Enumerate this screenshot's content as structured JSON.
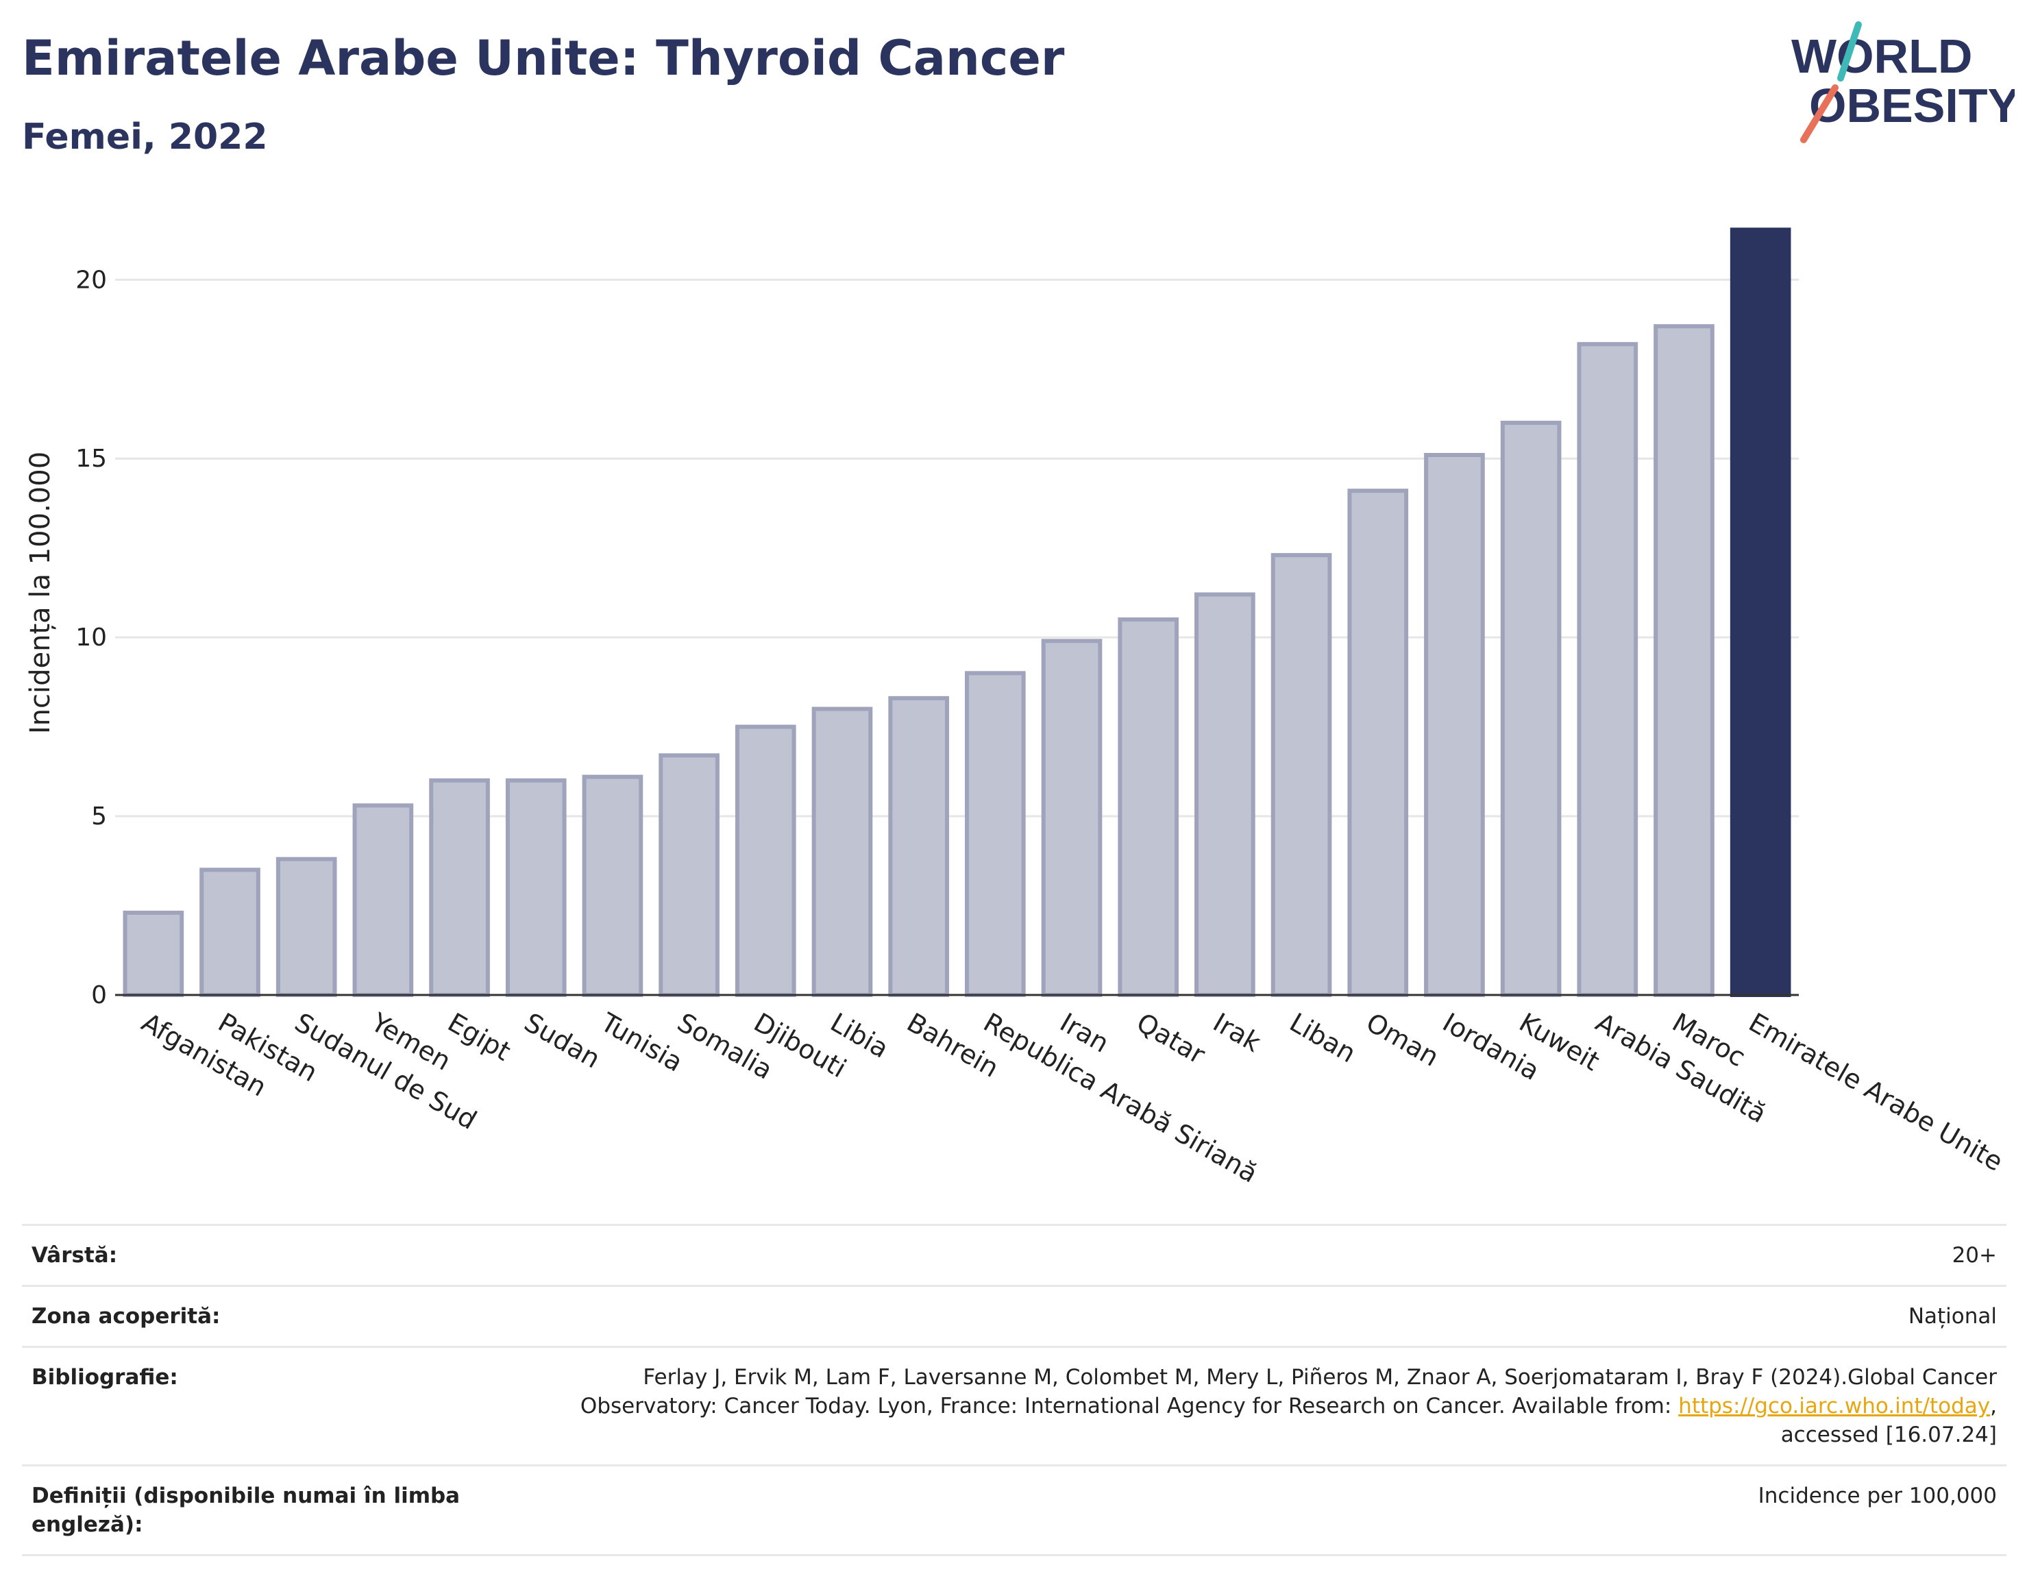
{
  "header": {
    "title": "Emiratele Arabe Unite: Thyroid Cancer",
    "subtitle": "Femei, 2022",
    "logo_line1": "WORLD",
    "logo_line2": "OBESITY"
  },
  "colors": {
    "bar_default": "#c0c3d1",
    "bar_default_border": "#9fa3bc",
    "bar_highlight": "#2b345e",
    "title": "#2b345e",
    "link": "#e8a60e"
  },
  "chart_data": {
    "type": "bar",
    "title": "Emiratele Arabe Unite: Thyroid Cancer",
    "subtitle": "Femei, 2022",
    "xlabel": "",
    "ylabel": "Incidența la 100.000",
    "ylim": [
      0,
      21.5
    ],
    "yticks": [
      0,
      5,
      10,
      15,
      20
    ],
    "grid": true,
    "highlight": "Emiratele Arabe Unite",
    "categories": [
      "Afganistan",
      "Pakistan",
      "Sudanul de Sud",
      "Yemen",
      "Egipt",
      "Sudan",
      "Tunisia",
      "Somalia",
      "Djibouti",
      "Libia",
      "Bahrein",
      "Republica Arabă Siriană",
      "Iran",
      "Qatar",
      "Irak",
      "Liban",
      "Oman",
      "Iordania",
      "Kuweit",
      "Arabia Saudită",
      "Maroc",
      "Emiratele Arabe Unite"
    ],
    "values": [
      2.3,
      3.5,
      3.8,
      5.3,
      6.0,
      6.0,
      6.1,
      6.7,
      7.5,
      8.0,
      8.3,
      9.0,
      9.9,
      10.5,
      11.2,
      12.3,
      14.1,
      15.1,
      16.0,
      18.2,
      18.7,
      21.4
    ]
  },
  "meta": [
    {
      "label": "Vârstă:",
      "value": "20+"
    },
    {
      "label": "Zona acoperită:",
      "value": "Național"
    },
    {
      "label": "Bibliografie:",
      "value": "Ferlay J, Ervik M, Lam F, Laversanne M, Colombet M, Mery L, Piñeros M, Znaor A, Soerjomataram I, Bray F (2024).Global Cancer Observatory: Cancer Today. Lyon, France: International Agency for Research on Cancer. Available from: ",
      "link": "https://gco.iarc.who.int/today",
      "value_after": ", accessed [16.07.24]"
    },
    {
      "label": "Definiții (disponibile numai în limba engleză):",
      "value": "Incidence per 100,000"
    }
  ]
}
